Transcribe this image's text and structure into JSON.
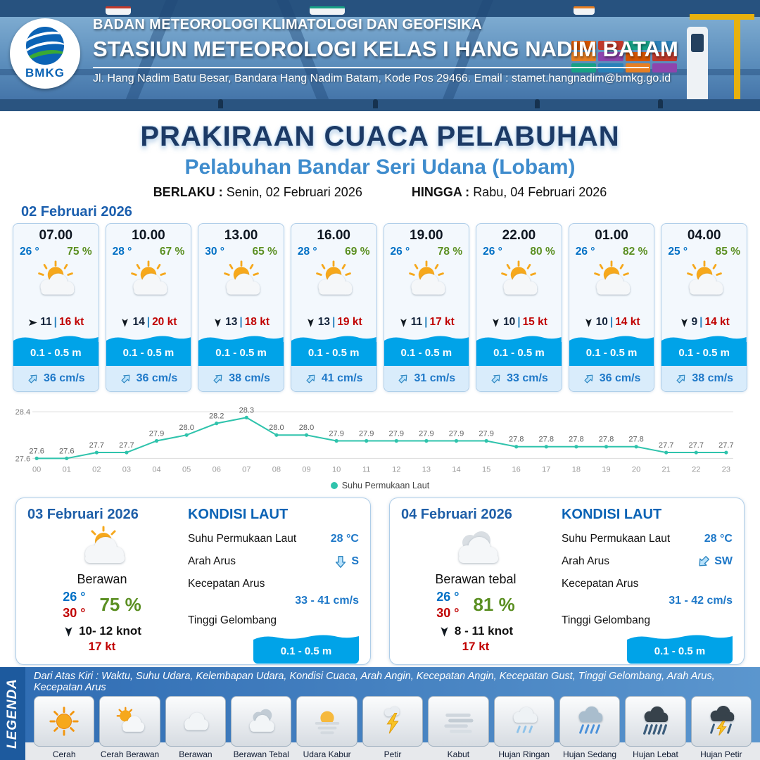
{
  "header": {
    "logo_text": "BMKG",
    "agency": "BADAN METEOROLOGI KLIMATOLOGI DAN GEOFISIKA",
    "station": "STASIUN METEOROLOGI KELAS I HANG NADIM BATAM",
    "address": "Jl. Hang Nadim Batu Besar, Bandara Hang Nadim Batam, Kode Pos 29466. Email : stamet.hangnadim@bmkg.go.id"
  },
  "title": {
    "main": "PRAKIRAAN CUACA PELABUHAN",
    "subtitle": "Pelabuhan Bandar Seri Udana (Lobam)",
    "valid_label": "BERLAKU :",
    "valid_value": "Senin, 02 Februari 2026",
    "until_label": "HINGGA :",
    "until_value": "Rabu, 04 Februari 2026"
  },
  "hourly": {
    "date": "02 Februari 2026",
    "sep": "|",
    "cards": [
      {
        "time": "07.00",
        "temp": "26 °",
        "humidity": "75 %",
        "wind_dir": "E",
        "wind_speed": "11",
        "gust": "16 kt",
        "wave_height": "0.1 - 0.5 m",
        "current_dir": "NE",
        "current_speed": "36 cm/s"
      },
      {
        "time": "10.00",
        "temp": "28 °",
        "humidity": "67 %",
        "wind_dir": "S",
        "wind_speed": "14",
        "gust": "20 kt",
        "wave_height": "0.1 - 0.5 m",
        "current_dir": "NE",
        "current_speed": "36 cm/s"
      },
      {
        "time": "13.00",
        "temp": "30 °",
        "humidity": "65 %",
        "wind_dir": "S",
        "wind_speed": "13",
        "gust": "18 kt",
        "wave_height": "0.1 - 0.5 m",
        "current_dir": "NE",
        "current_speed": "38 cm/s"
      },
      {
        "time": "16.00",
        "temp": "28 °",
        "humidity": "69 %",
        "wind_dir": "S",
        "wind_speed": "13",
        "gust": "19 kt",
        "wave_height": "0.1 - 0.5 m",
        "current_dir": "NE",
        "current_speed": "41 cm/s"
      },
      {
        "time": "19.00",
        "temp": "26 °",
        "humidity": "78 %",
        "wind_dir": "S",
        "wind_speed": "11",
        "gust": "17 kt",
        "wave_height": "0.1 - 0.5 m",
        "current_dir": "NE",
        "current_speed": "31 cm/s"
      },
      {
        "time": "22.00",
        "temp": "26 °",
        "humidity": "80 %",
        "wind_dir": "S",
        "wind_speed": "10",
        "gust": "15 kt",
        "wave_height": "0.1 - 0.5 m",
        "current_dir": "NE",
        "current_speed": "33 cm/s"
      },
      {
        "time": "01.00",
        "temp": "26 °",
        "humidity": "82 %",
        "wind_dir": "S",
        "wind_speed": "10",
        "gust": "14 kt",
        "wave_height": "0.1 - 0.5 m",
        "current_dir": "NE",
        "current_speed": "36 cm/s"
      },
      {
        "time": "04.00",
        "temp": "25 °",
        "humidity": "85 %",
        "wind_dir": "S",
        "wind_speed": "9",
        "gust": "14 kt",
        "wave_height": "0.1 - 0.5 m",
        "current_dir": "NE",
        "current_speed": "38 cm/s"
      }
    ]
  },
  "chart_data": {
    "type": "line",
    "legend": "Suhu Permukaan Laut",
    "x": [
      "00",
      "01",
      "02",
      "03",
      "04",
      "05",
      "06",
      "07",
      "08",
      "09",
      "10",
      "11",
      "12",
      "13",
      "14",
      "15",
      "16",
      "17",
      "18",
      "19",
      "20",
      "21",
      "22",
      "23"
    ],
    "values": [
      27.6,
      27.6,
      27.7,
      27.7,
      27.9,
      28.0,
      28.2,
      28.3,
      28.0,
      28.0,
      27.9,
      27.9,
      27.9,
      27.9,
      27.9,
      27.9,
      27.8,
      27.8,
      27.8,
      27.8,
      27.8,
      27.7,
      27.7,
      27.7
    ],
    "ylim": [
      27.6,
      28.4
    ],
    "line_color": "#2fc3ac",
    "grid": true,
    "legend_position": "bottom"
  },
  "sea_labels": {
    "title": "KONDISI LAUT",
    "sst": "Suhu Permukaan Laut",
    "current_dir": "Arah Arus",
    "current_speed": "Kecepatan Arus",
    "wave": "Tinggi Gelombang"
  },
  "days": [
    {
      "date": "03 Februari 2026",
      "condition": "Berawan",
      "temp_min": "26 °",
      "temp_max": "30 °",
      "humidity": "75 %",
      "wind": "10- 12 knot",
      "gust": "17 kt",
      "wind_dir": "S",
      "sst": "28 °C",
      "current_dir": "S",
      "current_speed": "33 - 41 cm/s",
      "wave_height": "0.1 - 0.5 m"
    },
    {
      "date": "04 Februari 2026",
      "condition": "Berawan tebal",
      "temp_min": "26 °",
      "temp_max": "30 °",
      "humidity": "81 %",
      "wind": "8 - 11 knot",
      "gust": "17 kt",
      "wind_dir": "S",
      "sst": "28 °C",
      "current_dir": "SW",
      "current_speed": "31 - 42 cm/s",
      "wave_height": "0.1 - 0.5 m"
    }
  ],
  "legend": {
    "title": "LEGENDA",
    "description": "Dari Atas Kiri : Waktu, Suhu Udara, Kelembapan Udara, Kondisi Cuaca, Arah Angin, Kecepatan Angin, Kecepatan Gust, Tinggi Gelombang, Arah Arus, Kecepatan Arus",
    "items": [
      {
        "label": "Cerah",
        "icon": "sun-icon"
      },
      {
        "label": "Cerah Berawan",
        "icon": "sun-cloud-icon"
      },
      {
        "label": "Berawan",
        "icon": "cloud-icon"
      },
      {
        "label": "Berawan Tebal",
        "icon": "clouds-icon"
      },
      {
        "label": "Udara Kabur",
        "icon": "haze-icon"
      },
      {
        "label": "Petir",
        "icon": "lightning-icon"
      },
      {
        "label": "Kabut",
        "icon": "fog-icon"
      },
      {
        "label": "Hujan Ringan",
        "icon": "light-rain-icon"
      },
      {
        "label": "Hujan Sedang",
        "icon": "moderate-rain-icon"
      },
      {
        "label": "Hujan Lebat",
        "icon": "heavy-rain-icon"
      },
      {
        "label": "Hujan Petir",
        "icon": "thunderstorm-icon"
      }
    ]
  },
  "colors": {
    "accent_blue": "#1f5fa8",
    "temp_blue": "#0070c5",
    "humidity_green": "#5b8f22",
    "gust_red": "#c00000",
    "wave_blue": "#00a3e8",
    "chart_teal": "#2fc3ac"
  }
}
